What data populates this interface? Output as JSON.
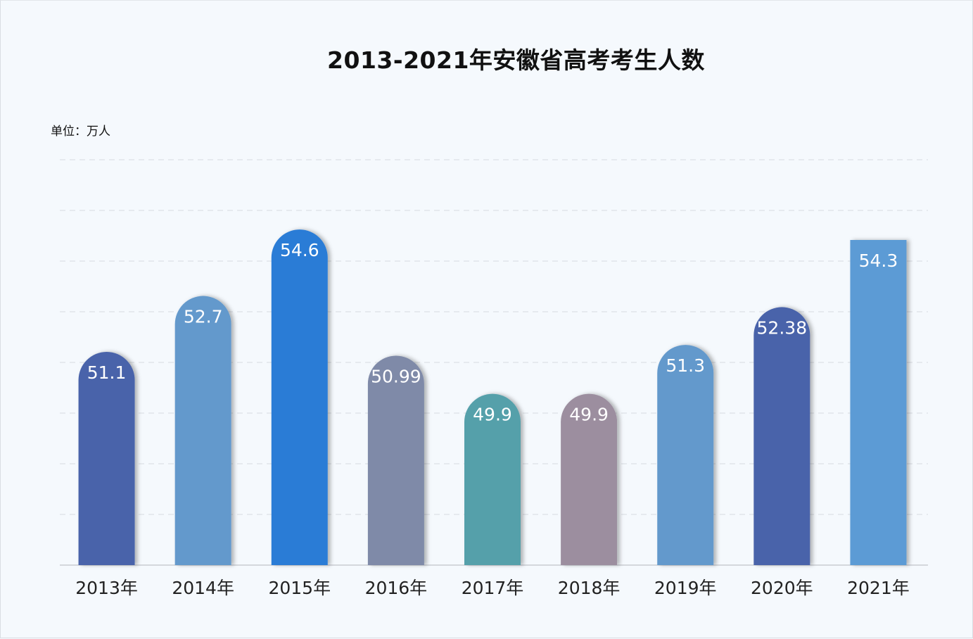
{
  "chart_data": {
    "type": "bar",
    "title": "2013-2021年安徽省高考考生人数",
    "unit_label": "单位：万人",
    "categories": [
      "2013年",
      "2014年",
      "2015年",
      "2016年",
      "2017年",
      "2018年",
      "2019年",
      "2020年",
      "2021年"
    ],
    "values": [
      51.1,
      52.7,
      54.6,
      50.99,
      49.9,
      49.9,
      51.3,
      52.38,
      54.3
    ],
    "value_labels": [
      "51.1",
      "52.7",
      "54.6",
      "50.99",
      "49.9",
      "49.9",
      "51.3",
      "52.38",
      "54.3"
    ],
    "colors": [
      "#4a63aa",
      "#6399cc",
      "#2a7bd6",
      "#7f8aa8",
      "#55a0aa",
      "#9c8e9f",
      "#6399cc",
      "#4a63aa",
      "#5b9bd5"
    ],
    "bar_shape": [
      "rounded",
      "rounded",
      "rounded",
      "rounded",
      "rounded",
      "rounded",
      "rounded",
      "rounded",
      "square"
    ],
    "ylim": [
      45,
      56
    ],
    "grid": true,
    "xlabel": "",
    "ylabel": ""
  }
}
